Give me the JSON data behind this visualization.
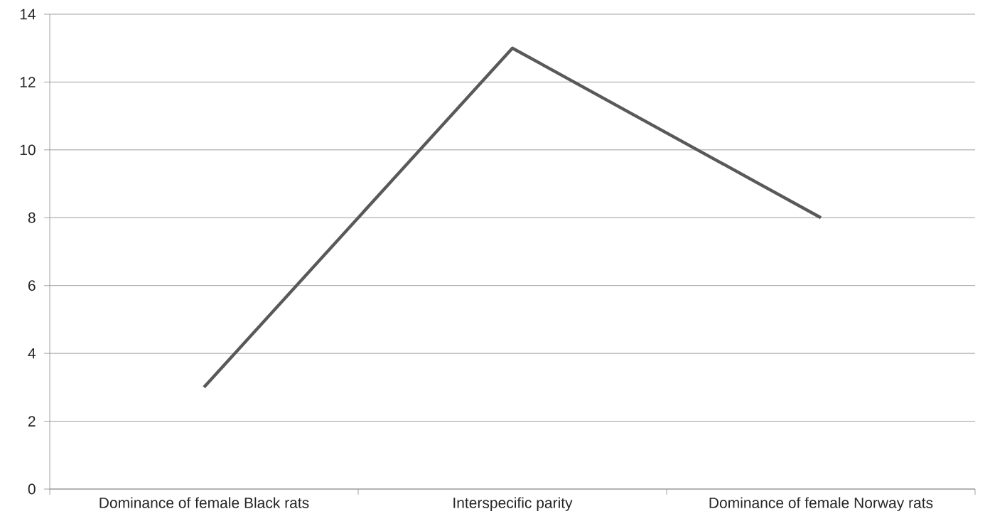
{
  "chart_data": {
    "type": "line",
    "categories": [
      "Dominance of female Black rats",
      "Interspecific parity",
      "Dominance of female Norway rats"
    ],
    "values": [
      3,
      13,
      8
    ],
    "color": "#595959",
    "ylim": [
      0,
      14
    ],
    "yticks": [
      0,
      2,
      4,
      6,
      8,
      10,
      12,
      14
    ],
    "grid": "y",
    "marker": "none",
    "line_style": "solid"
  }
}
